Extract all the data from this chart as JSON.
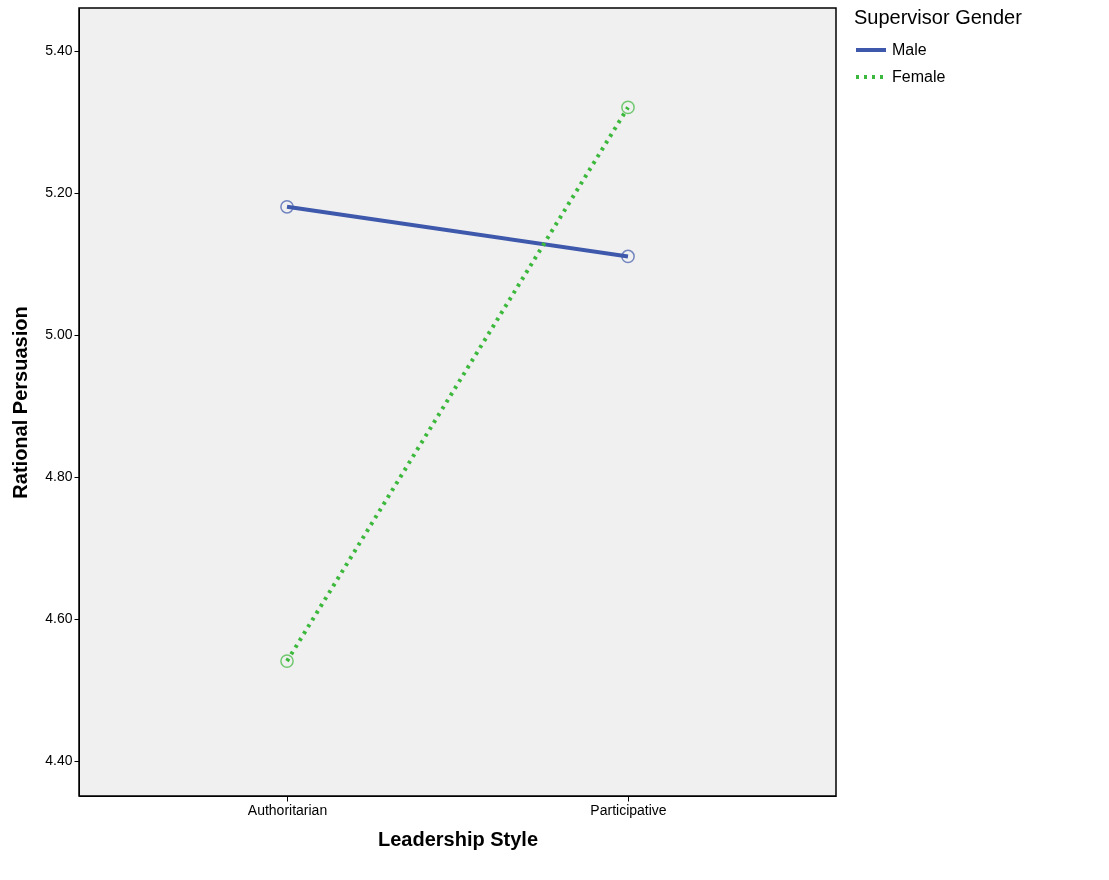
{
  "chart_data": {
    "type": "line",
    "xlabel": "Leadership Style",
    "ylabel": "Rational Persuasion",
    "legend_title": "Supervisor Gender",
    "categories": [
      "Authoritarian",
      "Participative"
    ],
    "series": [
      {
        "name": "Male",
        "color": "#3e58ac",
        "line_style": "solid",
        "values": [
          5.18,
          5.11
        ]
      },
      {
        "name": "Female",
        "color": "#3cb83c",
        "line_style": "dotted",
        "values": [
          4.54,
          5.32
        ]
      }
    ],
    "ylim": [
      4.35,
      5.46
    ],
    "yticks": [
      {
        "value": 4.4,
        "label": "4.40"
      },
      {
        "value": 4.6,
        "label": "4.60"
      },
      {
        "value": 4.8,
        "label": "4.80"
      },
      {
        "value": 5.0,
        "label": "5.00"
      },
      {
        "value": 5.2,
        "label": "5.20"
      },
      {
        "value": 5.4,
        "label": "5.40"
      }
    ],
    "marker": "circle",
    "grid": false,
    "legend": "top right"
  }
}
